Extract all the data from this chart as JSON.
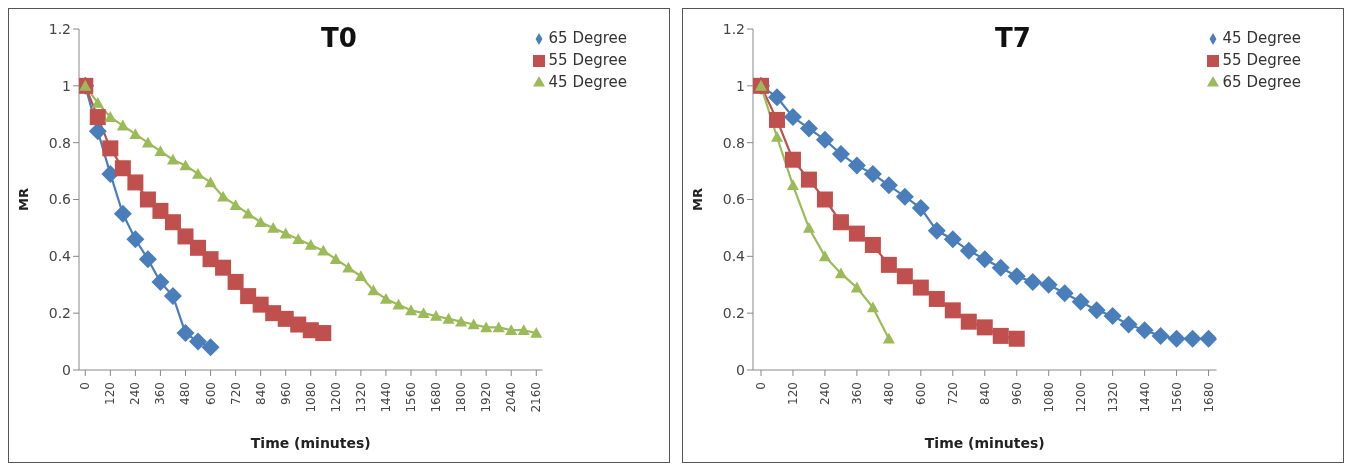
{
  "chart_data": [
    {
      "type": "line",
      "title": "T0",
      "xlabel": "Time (minutes)",
      "ylabel": "MR",
      "xlim": [
        -30,
        2190
      ],
      "xticks": [
        0,
        120,
        240,
        360,
        480,
        600,
        720,
        840,
        960,
        1080,
        1200,
        1320,
        1440,
        1560,
        1680,
        1800,
        1920,
        2040,
        2160
      ],
      "ylim": [
        0,
        1.2
      ],
      "yticks": [
        0,
        0.2,
        0.4,
        0.6,
        0.8,
        1,
        1.2
      ],
      "grid": false,
      "legend": "top right",
      "series": [
        {
          "name": "65 Degree",
          "color": "#4a7ebb",
          "marker": "diamond",
          "x": [
            0,
            60,
            120,
            180,
            240,
            300,
            360,
            420,
            480,
            540,
            600
          ],
          "values": [
            1,
            0.84,
            0.69,
            0.55,
            0.46,
            0.39,
            0.31,
            0.26,
            0.13,
            0.1,
            0.08
          ]
        },
        {
          "name": "55 Degree",
          "color": "#c0504d",
          "marker": "square",
          "x": [
            0,
            60,
            120,
            180,
            240,
            300,
            360,
            420,
            480,
            540,
            600,
            660,
            720,
            780,
            840,
            900,
            960,
            1020,
            1080,
            1140
          ],
          "values": [
            1,
            0.89,
            0.78,
            0.71,
            0.66,
            0.6,
            0.56,
            0.52,
            0.47,
            0.43,
            0.39,
            0.36,
            0.31,
            0.26,
            0.23,
            0.2,
            0.18,
            0.16,
            0.14,
            0.13
          ]
        },
        {
          "name": "45 Degree",
          "color": "#9bbb59",
          "marker": "triangle",
          "x": [
            0,
            60,
            120,
            180,
            240,
            300,
            360,
            420,
            480,
            540,
            600,
            660,
            720,
            780,
            840,
            900,
            960,
            1020,
            1080,
            1140,
            1200,
            1260,
            1320,
            1380,
            1440,
            1500,
            1560,
            1620,
            1680,
            1740,
            1800,
            1860,
            1920,
            1980,
            2040,
            2100,
            2160
          ],
          "values": [
            1,
            0.94,
            0.89,
            0.86,
            0.83,
            0.8,
            0.77,
            0.74,
            0.72,
            0.69,
            0.66,
            0.61,
            0.58,
            0.55,
            0.52,
            0.5,
            0.48,
            0.46,
            0.44,
            0.42,
            0.39,
            0.36,
            0.33,
            0.28,
            0.25,
            0.23,
            0.21,
            0.2,
            0.19,
            0.18,
            0.17,
            0.16,
            0.15,
            0.15,
            0.14,
            0.14,
            0.13
          ]
        }
      ]
    },
    {
      "type": "line",
      "title": "T7",
      "xlabel": "Time (minutes)",
      "ylabel": "MR",
      "xlim": [
        -30,
        1710
      ],
      "xticks": [
        0,
        120,
        240,
        360,
        480,
        600,
        720,
        840,
        960,
        1080,
        1200,
        1320,
        1440,
        1560,
        1680
      ],
      "ylim": [
        0,
        1.2
      ],
      "yticks": [
        0,
        0.2,
        0.4,
        0.6,
        0.8,
        1,
        1.2
      ],
      "grid": false,
      "legend": "top right",
      "series": [
        {
          "name": "45 Degree",
          "color": "#4a7ebb",
          "marker": "diamond",
          "x": [
            0,
            60,
            120,
            180,
            240,
            300,
            360,
            420,
            480,
            540,
            600,
            660,
            720,
            780,
            840,
            900,
            960,
            1020,
            1080,
            1140,
            1200,
            1260,
            1320,
            1380,
            1440,
            1500,
            1560,
            1620,
            1680
          ],
          "values": [
            1,
            0.96,
            0.89,
            0.85,
            0.81,
            0.76,
            0.72,
            0.69,
            0.65,
            0.61,
            0.57,
            0.49,
            0.46,
            0.42,
            0.39,
            0.36,
            0.33,
            0.31,
            0.3,
            0.27,
            0.24,
            0.21,
            0.19,
            0.16,
            0.14,
            0.12,
            0.11,
            0.11,
            0.11
          ]
        },
        {
          "name": "55 Degree",
          "color": "#c0504d",
          "marker": "square",
          "x": [
            0,
            60,
            120,
            180,
            240,
            300,
            360,
            420,
            480,
            540,
            600,
            660,
            720,
            780,
            840,
            900,
            960
          ],
          "values": [
            1,
            0.88,
            0.74,
            0.67,
            0.6,
            0.52,
            0.48,
            0.44,
            0.37,
            0.33,
            0.29,
            0.25,
            0.21,
            0.17,
            0.15,
            0.12,
            0.11
          ]
        },
        {
          "name": "65 Degree",
          "color": "#9bbb59",
          "marker": "triangle",
          "x": [
            0,
            60,
            120,
            180,
            240,
            300,
            360,
            420,
            480
          ],
          "values": [
            1,
            0.82,
            0.65,
            0.5,
            0.4,
            0.34,
            0.29,
            0.22,
            0.11
          ]
        }
      ]
    }
  ]
}
